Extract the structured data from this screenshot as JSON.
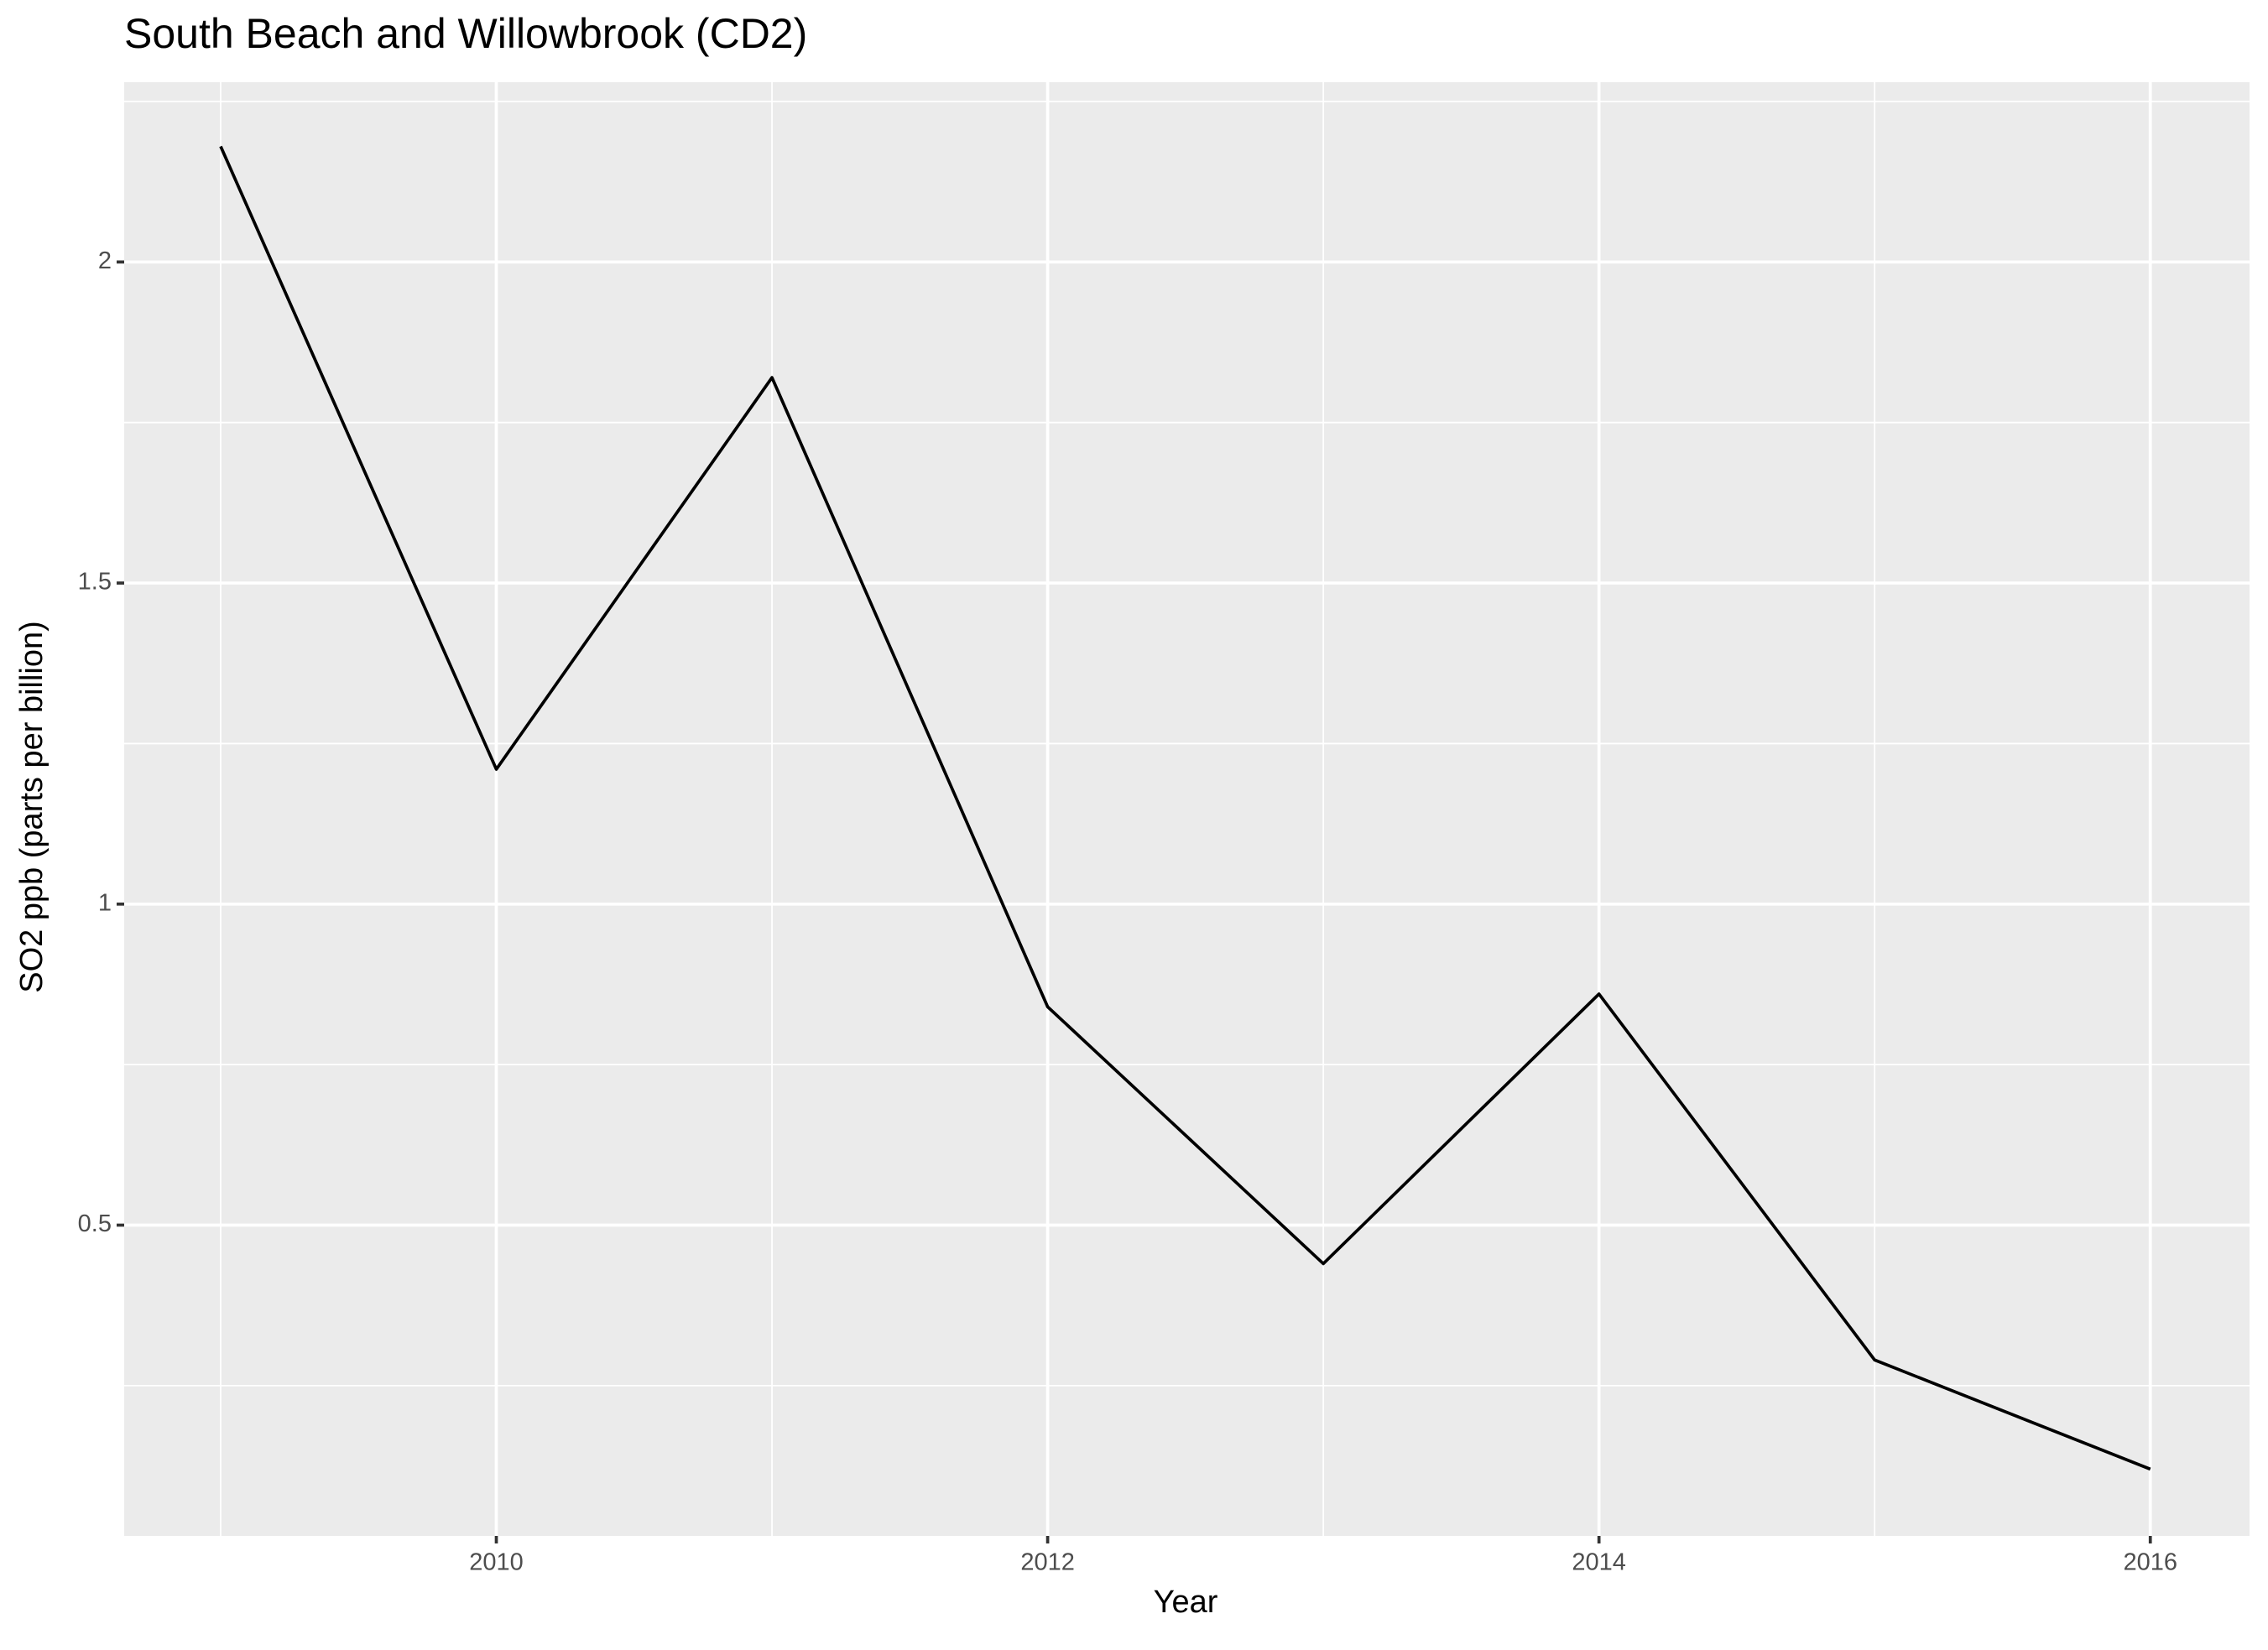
{
  "chart_data": {
    "type": "line",
    "title": "South Beach and Willowbrook (CD2)",
    "x_label": "Year",
    "y_label": "SO2 ppb (parts per billion)",
    "x": [
      2009,
      2010,
      2011,
      2012,
      2013,
      2014,
      2015,
      2016
    ],
    "values": [
      2.18,
      1.21,
      1.82,
      0.84,
      0.44,
      0.86,
      0.29,
      0.12
    ],
    "color": "#000000",
    "xlim": [
      2008.65,
      2016.36
    ],
    "xticks": [
      2010,
      2012,
      2014,
      2016
    ],
    "xminor": [
      2009,
      2011,
      2013,
      2015
    ],
    "ylim": [
      0.016,
      2.28
    ],
    "yticks": [
      0.5,
      1.0,
      1.5,
      2.0
    ],
    "yminor": [
      0.25,
      0.75,
      1.25,
      1.75,
      2.25
    ],
    "grid": true
  }
}
